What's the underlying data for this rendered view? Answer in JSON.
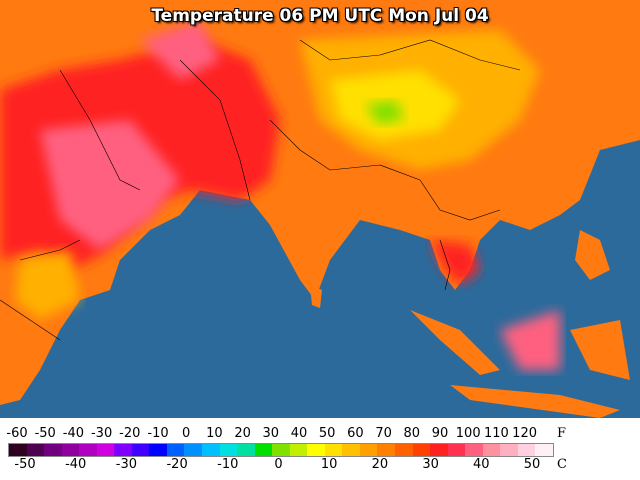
{
  "map": {
    "title": "Temperature 06 PM UTC Mon Jul 04",
    "ocean_color": "#2b6a9b",
    "land_colors": {
      "hot": "#ff2020",
      "very_hot": "#ff6080",
      "warm": "#ff7a10",
      "mild": "#ffb000",
      "cool": "#ffe000",
      "cold": "#80e000"
    }
  },
  "legend": {
    "fahrenheit_ticks": [
      "-60",
      "-50",
      "-40",
      "-30",
      "-20",
      "-10",
      "0",
      "10",
      "20",
      "30",
      "40",
      "50",
      "60",
      "70",
      "80",
      "90",
      "100",
      "110",
      "120"
    ],
    "fahrenheit_unit": "F",
    "celsius_ticks": [
      "-50",
      "-40",
      "-30",
      "-20",
      "-10",
      "0",
      "10",
      "20",
      "30",
      "40",
      "50"
    ],
    "celsius_unit": "C",
    "colors": [
      "#300020",
      "#500050",
      "#700080",
      "#9000a0",
      "#b000c0",
      "#d000e0",
      "#8000ff",
      "#4000ff",
      "#0000ff",
      "#0060ff",
      "#0090ff",
      "#00c0ff",
      "#00e0e0",
      "#00e0a0",
      "#00e000",
      "#80e000",
      "#c0f000",
      "#ffff00",
      "#ffe000",
      "#ffc000",
      "#ffa000",
      "#ff8000",
      "#ff6000",
      "#ff4000",
      "#ff2020",
      "#ff3050",
      "#ff6080",
      "#ff90a0",
      "#ffb0c0",
      "#ffd0e0",
      "#fff0f4"
    ]
  }
}
